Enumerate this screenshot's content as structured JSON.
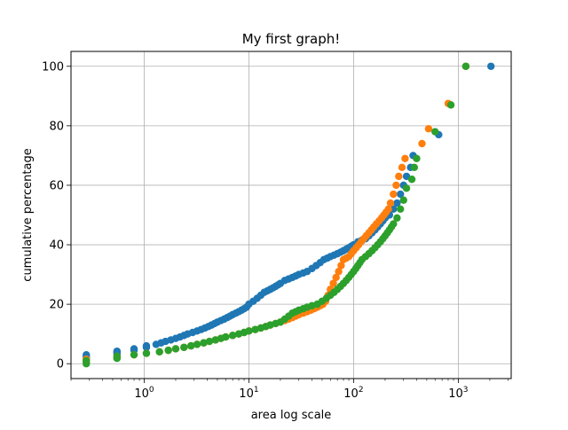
{
  "chart_data": {
    "type": "scatter",
    "title": "My first graph!",
    "xlabel": "area log scale",
    "ylabel": "cumulative percentage",
    "x_scale": "log",
    "xlim": [
      0.2,
      3200
    ],
    "ylim": [
      -5,
      105
    ],
    "x_major_ticks": [
      {
        "value": 1,
        "base": "10",
        "exp": "0"
      },
      {
        "value": 10,
        "base": "10",
        "exp": "1"
      },
      {
        "value": 100,
        "base": "10",
        "exp": "2"
      },
      {
        "value": 1000,
        "base": "10",
        "exp": "3"
      }
    ],
    "y_ticks": [
      0,
      20,
      40,
      60,
      80,
      100
    ],
    "grid": true,
    "legend": "none",
    "colors": [
      "#1f77b4",
      "#ff7f0e",
      "#2ca02c"
    ],
    "series": [
      {
        "x": [
          0.28,
          0.28,
          0.28,
          0.55,
          0.55,
          0.55,
          0.8,
          0.8,
          1.05,
          1.05,
          1.3,
          1.45,
          1.6,
          1.8,
          2.0,
          2.2,
          2.4,
          2.6,
          2.9,
          3.2,
          3.5,
          3.8,
          4.1,
          4.4,
          4.7,
          5.0,
          5.4,
          5.8,
          6.2,
          6.6,
          7.0,
          7.5,
          8.0,
          8.5,
          9.0,
          9.5,
          10.0,
          11.0,
          12.0,
          13.0,
          14.0,
          15.0,
          16.0,
          17.0,
          18.0,
          19.0,
          20.0,
          22.0,
          24.0,
          26.0,
          28.0,
          30.0,
          33.0,
          36.0,
          40.0,
          44.0,
          48.0,
          52.0,
          56.0,
          60.0,
          65.0,
          70.0,
          75.0,
          80.0,
          85.0,
          90.0,
          95.0,
          100.0,
          110.0,
          120.0,
          130.0,
          140.0,
          150.0,
          160.0,
          170.0,
          180.0,
          190.0,
          200.0,
          220.0,
          240.0,
          260.0,
          280.0,
          300.0,
          320.0,
          350.0,
          370.0,
          650.0,
          2050.0
        ],
        "y": [
          1.5,
          2.3,
          3.0,
          3.3,
          3.8,
          4.2,
          4.5,
          5.0,
          5.5,
          6.0,
          6.5,
          7.0,
          7.5,
          8.0,
          8.5,
          9.0,
          9.5,
          10.0,
          10.5,
          11.0,
          11.5,
          12.0,
          12.5,
          13.0,
          13.5,
          14.0,
          14.5,
          15.0,
          15.5,
          16.0,
          16.5,
          17.0,
          17.5,
          18.0,
          18.5,
          19.0,
          20.0,
          21.0,
          22.0,
          23.0,
          24.0,
          24.5,
          25.0,
          25.5,
          26.0,
          26.5,
          27.0,
          28.0,
          28.5,
          29.0,
          29.5,
          30.0,
          30.5,
          31.0,
          32.0,
          33.0,
          34.0,
          35.0,
          35.5,
          36.0,
          36.5,
          37.0,
          37.5,
          38.0,
          38.5,
          39.0,
          39.5,
          40.0,
          41.0,
          41.5,
          42.0,
          43.0,
          44.0,
          45.0,
          46.0,
          47.0,
          48.0,
          49.0,
          50.0,
          52.0,
          54.0,
          57.0,
          60.0,
          63.0,
          66.0,
          70.0,
          77.0,
          100.0
        ]
      },
      {
        "x": [
          0.28,
          0.28,
          0.55,
          0.55,
          0.8,
          1.05,
          1.4,
          1.7,
          2.0,
          2.4,
          2.8,
          3.2,
          3.7,
          4.2,
          4.8,
          5.4,
          6.0,
          7.0,
          8.0,
          9.0,
          10.0,
          11.5,
          13.0,
          14.5,
          16.0,
          18.0,
          20.0,
          22.0,
          24.0,
          26.0,
          28.0,
          30.0,
          33.0,
          36.0,
          39.0,
          42.0,
          45.0,
          48.0,
          51.0,
          54.0,
          57.0,
          60.0,
          64.0,
          68.0,
          72.0,
          76.0,
          80.0,
          85.0,
          90.0,
          95.0,
          100.0,
          106.0,
          112.0,
          118.0,
          125.0,
          132.0,
          140.0,
          148.0,
          156.0,
          165.0,
          175.0,
          185.0,
          195.0,
          205.0,
          215.0,
          225.0,
          240.0,
          255.0,
          270.0,
          290.0,
          310.0,
          450.0,
          520.0,
          800.0,
          1180.0
        ],
        "y": [
          0.5,
          1.5,
          2.0,
          2.5,
          3.0,
          3.5,
          4.0,
          4.5,
          5.0,
          5.5,
          6.0,
          6.5,
          7.0,
          7.5,
          8.0,
          8.5,
          9.0,
          9.5,
          10.0,
          10.5,
          11.0,
          11.5,
          12.0,
          12.5,
          13.0,
          13.5,
          14.0,
          14.5,
          15.0,
          15.5,
          16.0,
          16.5,
          17.0,
          17.5,
          18.0,
          18.5,
          19.0,
          19.5,
          20.0,
          21.0,
          23.0,
          25.0,
          27.0,
          29.0,
          31.0,
          33.0,
          35.0,
          35.5,
          36.0,
          37.0,
          38.0,
          39.0,
          40.0,
          41.0,
          42.0,
          43.0,
          44.0,
          45.0,
          46.0,
          47.0,
          48.0,
          49.0,
          50.0,
          51.0,
          52.0,
          54.0,
          57.0,
          60.0,
          63.0,
          66.0,
          69.0,
          74.0,
          79.0,
          87.5,
          100.0
        ]
      },
      {
        "x": [
          0.28,
          0.28,
          0.55,
          0.55,
          0.8,
          1.05,
          1.4,
          1.7,
          2.0,
          2.4,
          2.8,
          3.2,
          3.7,
          4.2,
          4.8,
          5.4,
          6.0,
          7.0,
          8.0,
          9.0,
          10.0,
          11.5,
          13.0,
          14.5,
          16.0,
          18.0,
          20.0,
          22.0,
          24.0,
          26.0,
          28.0,
          30.0,
          33.0,
          36.0,
          40.0,
          45.0,
          50.0,
          55.0,
          60.0,
          65.0,
          70.0,
          75.0,
          80.0,
          85.0,
          90.0,
          95.0,
          100.0,
          105.0,
          110.0,
          115.0,
          120.0,
          130.0,
          140.0,
          150.0,
          160.0,
          170.0,
          180.0,
          190.0,
          200.0,
          210.0,
          220.0,
          230.0,
          240.0,
          260.0,
          280.0,
          300.0,
          320.0,
          360.0,
          380.0,
          400.0,
          600.0,
          850.0,
          1180.0
        ],
        "y": [
          0.0,
          1.0,
          1.8,
          2.5,
          3.0,
          3.5,
          4.0,
          4.5,
          5.0,
          5.5,
          6.0,
          6.5,
          7.0,
          7.5,
          8.0,
          8.5,
          9.0,
          9.5,
          10.0,
          10.5,
          11.0,
          11.5,
          12.0,
          12.5,
          13.0,
          13.5,
          14.0,
          15.0,
          16.0,
          17.0,
          17.5,
          18.0,
          18.5,
          19.0,
          19.5,
          20.0,
          21.0,
          22.0,
          23.0,
          24.0,
          25.0,
          26.0,
          27.0,
          28.0,
          29.0,
          30.0,
          31.0,
          32.0,
          33.0,
          34.0,
          35.0,
          36.0,
          37.0,
          38.0,
          39.0,
          40.0,
          41.0,
          42.0,
          43.0,
          44.0,
          45.0,
          46.0,
          47.0,
          49.0,
          52.0,
          55.0,
          59.0,
          62.0,
          66.0,
          69.0,
          78.0,
          87.0,
          100.0
        ]
      }
    ]
  }
}
